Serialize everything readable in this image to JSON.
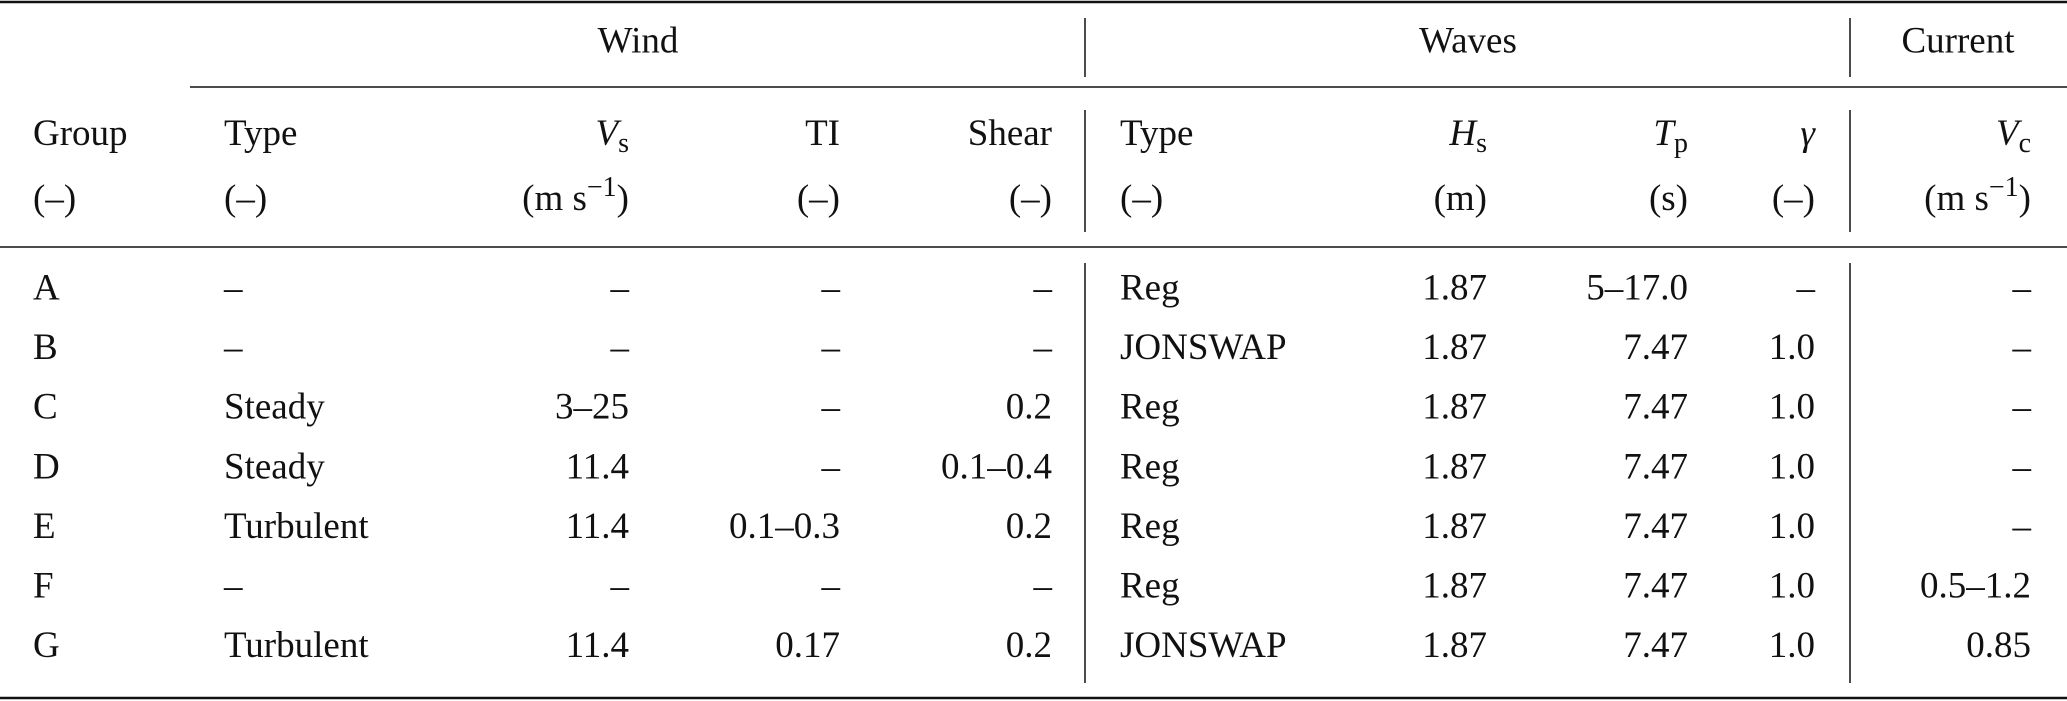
{
  "table": {
    "groups": [
      "Wind",
      "Waves",
      "Current"
    ],
    "columns": [
      {
        "name": "Group",
        "unit": "(–)"
      },
      {
        "name": "Type",
        "unit": "(–)"
      },
      {
        "symbol": "V",
        "sub": "s",
        "unit": "(m s",
        "unit_sup": "−1",
        "unit_end": ")"
      },
      {
        "name": "TI",
        "unit": "(–)"
      },
      {
        "name": "Shear",
        "unit": "(–)"
      },
      {
        "name": "Type",
        "unit": "(–)"
      },
      {
        "symbol": "H",
        "sub": "s",
        "unit": "(m)"
      },
      {
        "symbol": "T",
        "sub": "p",
        "unit": "(s)"
      },
      {
        "symbol": "γ",
        "unit": "(–)"
      },
      {
        "symbol": "V",
        "sub": "c",
        "unit": "(m s",
        "unit_sup": "−1",
        "unit_end": ")"
      }
    ],
    "rows": [
      [
        "A",
        "–",
        "–",
        "–",
        "–",
        "Reg",
        "1.87",
        "5–17.0",
        "–",
        "–"
      ],
      [
        "B",
        "–",
        "–",
        "–",
        "–",
        "JONSWAP",
        "1.87",
        "7.47",
        "1.0",
        "–"
      ],
      [
        "C",
        "Steady",
        "3–25",
        "–",
        "0.2",
        "Reg",
        "1.87",
        "7.47",
        "1.0",
        "–"
      ],
      [
        "D",
        "Steady",
        "11.4",
        "–",
        "0.1–0.4",
        "Reg",
        "1.87",
        "7.47",
        "1.0",
        "–"
      ],
      [
        "E",
        "Turbulent",
        "11.4",
        "0.1–0.3",
        "0.2",
        "Reg",
        "1.87",
        "7.47",
        "1.0",
        "–"
      ],
      [
        "F",
        "–",
        "–",
        "–",
        "–",
        "Reg",
        "1.87",
        "7.47",
        "1.0",
        "0.5–1.2"
      ],
      [
        "G",
        "Turbulent",
        "11.4",
        "0.17",
        "0.2",
        "JONSWAP",
        "1.87",
        "7.47",
        "1.0",
        "0.85"
      ]
    ]
  }
}
